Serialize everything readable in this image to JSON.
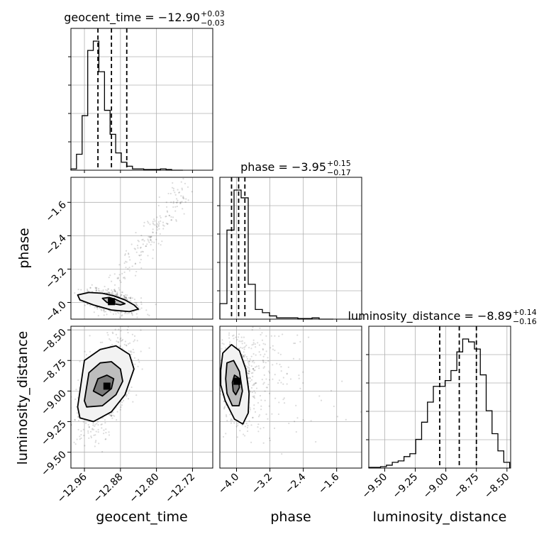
{
  "chart_data": {
    "type": "scatter",
    "subtype": "corner-plot",
    "parameters": [
      "geocent_time",
      "phase",
      "luminosity_distance"
    ],
    "grid": true,
    "titles": [
      {
        "param": "geocent_time",
        "text": "geocent_time = −12.90",
        "plus": "+0.03",
        "minus": "−0.03"
      },
      {
        "param": "phase",
        "text": "phase = −3.95",
        "plus": "+0.15",
        "minus": "−0.17"
      },
      {
        "param": "luminosity_distance",
        "text": "luminosity_distance = −8.89",
        "plus": "+0.14",
        "minus": "−0.16"
      }
    ],
    "axes": {
      "geocent_time": {
        "range": [
          -12.99,
          -12.675
        ],
        "ticks": [
          -12.96,
          -12.88,
          -12.8,
          -12.72
        ],
        "tick_labels": [
          "−12.96",
          "−12.88",
          "−12.80",
          "−12.72"
        ],
        "quantiles": [
          -12.93,
          -12.9,
          -12.866
        ]
      },
      "phase": {
        "range": [
          -4.4,
          -1.0
        ],
        "ticks": [
          -4.0,
          -3.2,
          -2.4,
          -1.6
        ],
        "tick_labels": [
          "−4.0",
          "−3.2",
          "−2.4",
          "−1.6"
        ],
        "quantiles": [
          -4.12,
          -3.95,
          -3.8
        ]
      },
      "luminosity_distance": {
        "range": [
          -9.63,
          -8.47
        ],
        "ticks": [
          -9.5,
          -9.25,
          -9.0,
          -8.75,
          -8.5
        ],
        "tick_labels": [
          "−9.50",
          "−9.25",
          "−9.00",
          "−8.75",
          "−8.50"
        ],
        "quantiles": [
          -9.05,
          -8.89,
          -8.75
        ]
      }
    },
    "histograms": {
      "geocent_time": {
        "edges": [
          -12.99,
          -12.9776,
          -12.9651,
          -12.9527,
          -12.9403,
          -12.9279,
          -12.9154,
          -12.903,
          -12.8906,
          -12.8781,
          -12.8657,
          -12.8533,
          -12.8409,
          -12.8284,
          -12.816,
          -12.8036,
          -12.7911,
          -12.7787,
          -12.7663,
          -12.7539,
          -12.7414
        ],
        "counts": [
          0.01,
          0.12,
          0.41,
          0.9,
          0.97,
          0.74,
          0.45,
          0.27,
          0.13,
          0.06,
          0.03,
          0.01,
          0.01,
          0.005,
          0.005,
          0.005,
          0.01,
          0.005,
          0.0,
          0.0
        ]
      },
      "phase": {
        "edges": [
          -4.4,
          -4.23,
          -4.06,
          -3.89,
          -3.72,
          -3.55,
          -3.38,
          -3.21,
          -3.04,
          -2.87,
          -2.7,
          -2.53,
          -2.36,
          -2.19,
          -2.02,
          -1.85,
          -1.68
        ],
        "counts": [
          0.12,
          0.69,
          1.0,
          0.94,
          0.27,
          0.075,
          0.05,
          0.025,
          0.01,
          0.01,
          0.01,
          0.005,
          0.005,
          0.01,
          0.0,
          0.0
        ]
      },
      "luminosity_distance": {
        "edges": [
          -9.63,
          -9.582,
          -9.534,
          -9.486,
          -9.438,
          -9.39,
          -9.342,
          -9.294,
          -9.246,
          -9.198,
          -9.15,
          -9.102,
          -9.054,
          -9.006,
          -8.958,
          -8.91,
          -8.862,
          -8.814,
          -8.766,
          -8.718,
          -8.67,
          -8.622,
          -8.574,
          -8.526,
          -8.478
        ],
        "counts": [
          0.005,
          0.005,
          0.01,
          0.02,
          0.04,
          0.05,
          0.08,
          0.1,
          0.2,
          0.32,
          0.46,
          0.57,
          0.57,
          0.61,
          0.68,
          0.81,
          0.9,
          0.88,
          0.83,
          0.65,
          0.4,
          0.24,
          0.12,
          0.04
        ]
      }
    },
    "pairs": [
      {
        "x": "geocent_time",
        "y": "phase",
        "center": [
          -12.9,
          -3.98
        ],
        "contours": [
          [
            [
              -12.975,
              -3.82
            ],
            [
              -12.95,
              -3.76
            ],
            [
              -12.92,
              -3.78
            ],
            [
              -12.895,
              -3.84
            ],
            [
              -12.87,
              -3.94
            ],
            [
              -12.85,
              -4.06
            ],
            [
              -12.84,
              -4.16
            ],
            [
              -12.86,
              -4.22
            ],
            [
              -12.9,
              -4.18
            ],
            [
              -12.94,
              -4.06
            ],
            [
              -12.97,
              -3.94
            ],
            [
              -12.975,
              -3.82
            ]
          ],
          [
            [
              -12.92,
              -3.9
            ],
            [
              -12.905,
              -3.88
            ],
            [
              -12.89,
              -3.93
            ],
            [
              -12.87,
              -4.03
            ],
            [
              -12.88,
              -4.06
            ],
            [
              -12.91,
              -4.0
            ],
            [
              -12.92,
              -3.9
            ]
          ],
          [
            [
              -12.905,
              -3.96
            ],
            [
              -12.897,
              -3.955
            ],
            [
              -12.892,
              -3.99
            ],
            [
              -12.898,
              -4.0
            ],
            [
              -12.905,
              -3.96
            ]
          ]
        ]
      },
      {
        "x": "geocent_time",
        "y": "luminosity_distance",
        "center": [
          -12.91,
          -8.96
        ],
        "contours": [
          [
            [
              -12.975,
              -9.13
            ],
            [
              -12.96,
              -8.75
            ],
            [
              -12.925,
              -8.66
            ],
            [
              -12.89,
              -8.63
            ],
            [
              -12.86,
              -8.7
            ],
            [
              -12.85,
              -8.82
            ],
            [
              -12.87,
              -9.03
            ],
            [
              -12.9,
              -9.17
            ],
            [
              -12.94,
              -9.25
            ],
            [
              -12.97,
              -9.22
            ],
            [
              -12.975,
              -9.13
            ]
          ],
          [
            [
              -12.96,
              -9.08
            ],
            [
              -12.95,
              -8.85
            ],
            [
              -12.925,
              -8.77
            ],
            [
              -12.9,
              -8.76
            ],
            [
              -12.88,
              -8.82
            ],
            [
              -12.875,
              -8.92
            ],
            [
              -12.89,
              -9.03
            ],
            [
              -12.92,
              -9.12
            ],
            [
              -12.955,
              -9.13
            ],
            [
              -12.96,
              -9.08
            ]
          ],
          [
            [
              -12.94,
              -9.0
            ],
            [
              -12.93,
              -8.9
            ],
            [
              -12.91,
              -8.87
            ],
            [
              -12.895,
              -8.9
            ],
            [
              -12.9,
              -8.98
            ],
            [
              -12.92,
              -9.04
            ],
            [
              -12.94,
              -9.0
            ]
          ]
        ]
      },
      {
        "x": "phase",
        "y": "luminosity_distance",
        "center": [
          -3.99,
          -8.92
        ],
        "contours": [
          [
            [
              -4.38,
              -8.83
            ],
            [
              -4.33,
              -8.69
            ],
            [
              -4.12,
              -8.62
            ],
            [
              -3.93,
              -8.67
            ],
            [
              -3.78,
              -8.82
            ],
            [
              -3.7,
              -9.02
            ],
            [
              -3.72,
              -9.18
            ],
            [
              -3.85,
              -9.27
            ],
            [
              -4.05,
              -9.23
            ],
            [
              -4.27,
              -9.08
            ],
            [
              -4.38,
              -8.95
            ],
            [
              -4.38,
              -8.83
            ]
          ],
          [
            [
              -4.26,
              -8.9
            ],
            [
              -4.23,
              -8.77
            ],
            [
              -4.07,
              -8.75
            ],
            [
              -3.93,
              -8.84
            ],
            [
              -3.86,
              -9.0
            ],
            [
              -3.94,
              -9.12
            ],
            [
              -4.1,
              -9.12
            ],
            [
              -4.23,
              -9.02
            ],
            [
              -4.26,
              -8.9
            ]
          ],
          [
            [
              -4.1,
              -8.93
            ],
            [
              -4.05,
              -8.87
            ],
            [
              -3.96,
              -8.89
            ],
            [
              -3.93,
              -8.97
            ],
            [
              -4.02,
              -9.03
            ],
            [
              -4.08,
              -9.0
            ],
            [
              -4.1,
              -8.93
            ]
          ]
        ]
      }
    ]
  }
}
